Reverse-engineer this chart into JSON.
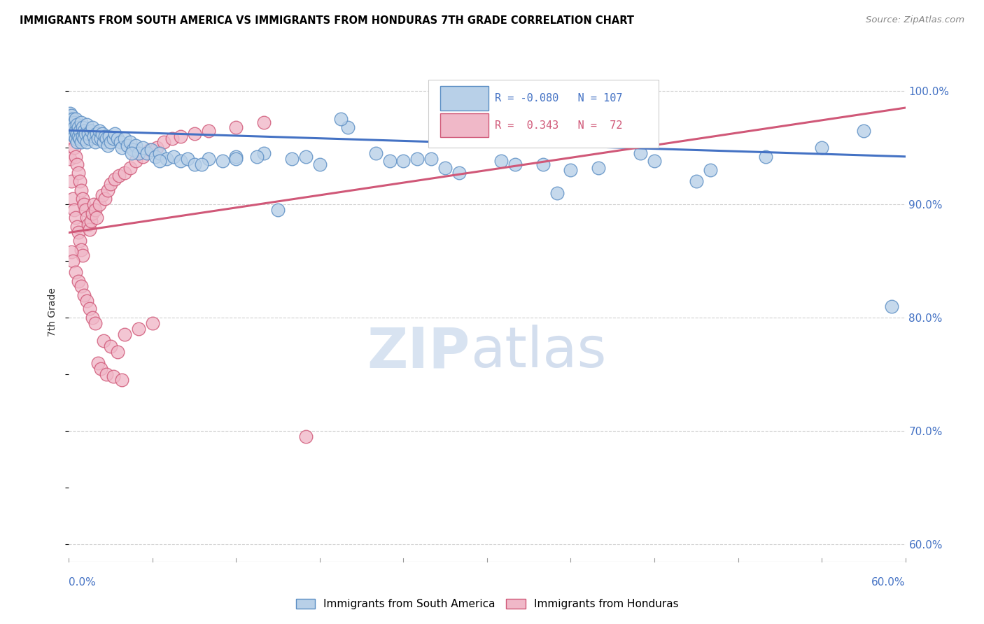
{
  "title": "IMMIGRANTS FROM SOUTH AMERICA VS IMMIGRANTS FROM HONDURAS 7TH GRADE CORRELATION CHART",
  "source": "Source: ZipAtlas.com",
  "ylabel": "7th Grade",
  "ylabel_right_ticks": [
    "60.0%",
    "70.0%",
    "80.0%",
    "90.0%",
    "100.0%"
  ],
  "ylabel_right_values": [
    0.6,
    0.7,
    0.8,
    0.9,
    1.0
  ],
  "xmin": 0.0,
  "xmax": 0.6,
  "ymin": 0.585,
  "ymax": 1.025,
  "legend_blue_label": "Immigrants from South America",
  "legend_pink_label": "Immigrants from Honduras",
  "r_blue": -0.08,
  "n_blue": 107,
  "r_pink": 0.343,
  "n_pink": 72,
  "blue_color": "#b8d0e8",
  "blue_edge_color": "#5b8ec4",
  "pink_color": "#f0b8c8",
  "pink_edge_color": "#d05878",
  "blue_line_color": "#4472c4",
  "pink_line_color": "#d05878",
  "watermark_zip_color": "#c8d8ec",
  "watermark_atlas_color": "#b0c4e0",
  "blue_scatter_x": [
    0.001,
    0.001,
    0.001,
    0.002,
    0.002,
    0.002,
    0.002,
    0.003,
    0.003,
    0.003,
    0.004,
    0.004,
    0.004,
    0.005,
    0.005,
    0.005,
    0.006,
    0.006,
    0.006,
    0.007,
    0.007,
    0.008,
    0.008,
    0.009,
    0.009,
    0.01,
    0.01,
    0.011,
    0.011,
    0.012,
    0.013,
    0.013,
    0.014,
    0.015,
    0.016,
    0.017,
    0.018,
    0.019,
    0.02,
    0.021,
    0.022,
    0.023,
    0.024,
    0.025,
    0.026,
    0.027,
    0.028,
    0.029,
    0.03,
    0.032,
    0.033,
    0.035,
    0.037,
    0.038,
    0.04,
    0.042,
    0.044,
    0.046,
    0.048,
    0.05,
    0.053,
    0.056,
    0.059,
    0.062,
    0.065,
    0.07,
    0.075,
    0.08,
    0.085,
    0.09,
    0.1,
    0.11,
    0.12,
    0.14,
    0.16,
    0.18,
    0.2,
    0.23,
    0.26,
    0.3,
    0.34,
    0.38,
    0.42,
    0.46,
    0.5,
    0.54,
    0.57,
    0.59,
    0.15,
    0.25,
    0.35,
    0.195,
    0.31,
    0.41,
    0.36,
    0.27,
    0.32,
    0.28,
    0.45,
    0.17,
    0.22,
    0.24,
    0.12,
    0.135,
    0.095,
    0.065,
    0.045
  ],
  "blue_scatter_y": [
    0.98,
    0.975,
    0.97,
    0.978,
    0.972,
    0.968,
    0.965,
    0.975,
    0.97,
    0.965,
    0.972,
    0.968,
    0.96,
    0.975,
    0.965,
    0.958,
    0.97,
    0.962,
    0.955,
    0.968,
    0.96,
    0.965,
    0.958,
    0.972,
    0.955,
    0.968,
    0.96,
    0.965,
    0.958,
    0.962,
    0.97,
    0.955,
    0.962,
    0.958,
    0.965,
    0.968,
    0.96,
    0.955,
    0.962,
    0.958,
    0.965,
    0.958,
    0.962,
    0.955,
    0.96,
    0.958,
    0.952,
    0.96,
    0.955,
    0.958,
    0.962,
    0.958,
    0.955,
    0.95,
    0.958,
    0.952,
    0.955,
    0.948,
    0.952,
    0.945,
    0.95,
    0.945,
    0.948,
    0.942,
    0.945,
    0.94,
    0.942,
    0.938,
    0.94,
    0.935,
    0.94,
    0.938,
    0.942,
    0.945,
    0.94,
    0.935,
    0.968,
    0.938,
    0.94,
    0.965,
    0.935,
    0.932,
    0.938,
    0.93,
    0.942,
    0.95,
    0.965,
    0.81,
    0.895,
    0.94,
    0.91,
    0.975,
    0.938,
    0.945,
    0.93,
    0.932,
    0.935,
    0.928,
    0.92,
    0.942,
    0.945,
    0.938,
    0.94,
    0.942,
    0.935,
    0.938,
    0.945
  ],
  "pink_scatter_x": [
    0.001,
    0.001,
    0.002,
    0.002,
    0.003,
    0.003,
    0.004,
    0.004,
    0.005,
    0.005,
    0.006,
    0.006,
    0.007,
    0.007,
    0.008,
    0.008,
    0.009,
    0.009,
    0.01,
    0.01,
    0.011,
    0.012,
    0.013,
    0.014,
    0.015,
    0.016,
    0.017,
    0.018,
    0.019,
    0.02,
    0.022,
    0.024,
    0.026,
    0.028,
    0.03,
    0.033,
    0.036,
    0.04,
    0.044,
    0.048,
    0.053,
    0.058,
    0.063,
    0.068,
    0.074,
    0.08,
    0.09,
    0.1,
    0.12,
    0.14,
    0.002,
    0.003,
    0.005,
    0.007,
    0.009,
    0.011,
    0.013,
    0.015,
    0.017,
    0.019,
    0.025,
    0.03,
    0.035,
    0.04,
    0.05,
    0.06,
    0.17,
    0.021,
    0.023,
    0.027,
    0.032,
    0.038
  ],
  "pink_scatter_y": [
    0.968,
    0.94,
    0.965,
    0.92,
    0.958,
    0.905,
    0.95,
    0.895,
    0.942,
    0.888,
    0.935,
    0.88,
    0.928,
    0.875,
    0.92,
    0.868,
    0.912,
    0.86,
    0.905,
    0.855,
    0.9,
    0.895,
    0.888,
    0.882,
    0.878,
    0.885,
    0.892,
    0.9,
    0.895,
    0.888,
    0.9,
    0.908,
    0.905,
    0.912,
    0.918,
    0.922,
    0.925,
    0.928,
    0.932,
    0.938,
    0.942,
    0.948,
    0.95,
    0.955,
    0.958,
    0.96,
    0.962,
    0.965,
    0.968,
    0.972,
    0.858,
    0.85,
    0.84,
    0.832,
    0.828,
    0.82,
    0.815,
    0.808,
    0.8,
    0.795,
    0.78,
    0.775,
    0.77,
    0.785,
    0.79,
    0.795,
    0.695,
    0.76,
    0.755,
    0.75,
    0.748,
    0.745
  ],
  "blue_trend_x": [
    0.0,
    0.6
  ],
  "blue_trend_y": [
    0.965,
    0.942
  ],
  "pink_trend_x": [
    0.0,
    0.6
  ],
  "pink_trend_y": [
    0.875,
    0.985
  ]
}
